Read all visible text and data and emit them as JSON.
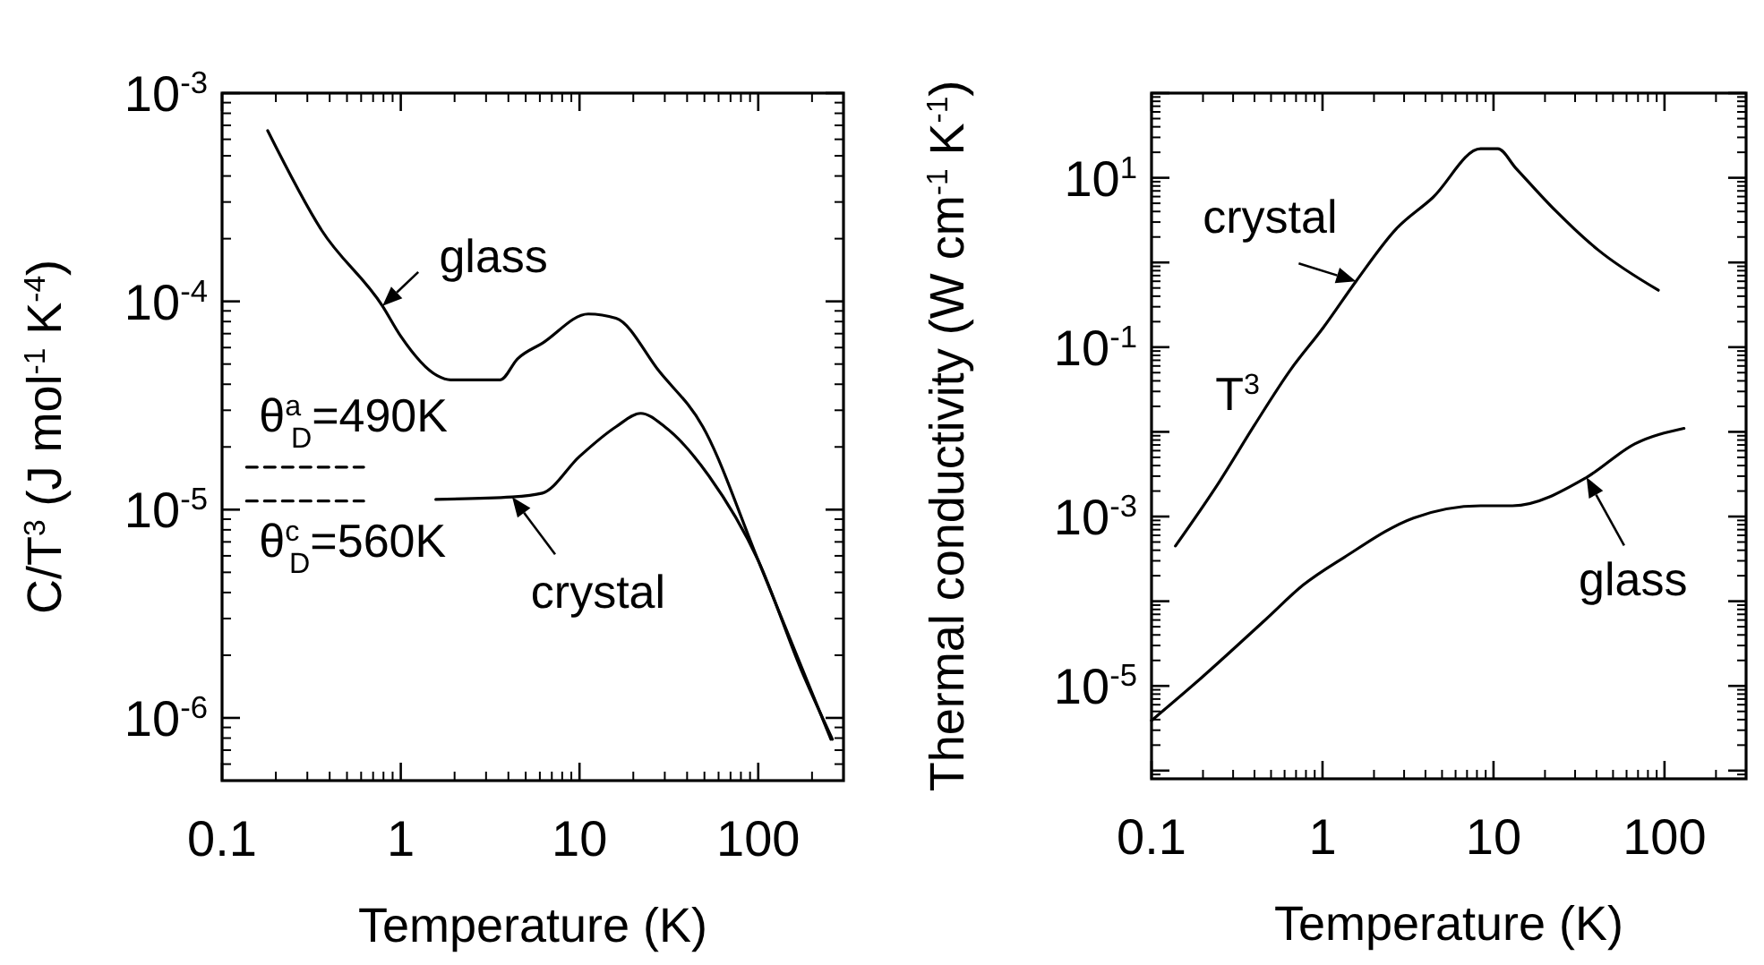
{
  "chart_data": [
    {
      "type": "line",
      "log": "xy",
      "xlabel": "Temperature (K)",
      "ylabel": "C/T$^{3}$ (J mol$^{-1}$ K$^{-4}$)",
      "xlim": [
        0.1,
        300
      ],
      "ylim": [
        5e-07,
        0.001
      ],
      "xticks": [
        0.1,
        1,
        10,
        100
      ],
      "yticks": [
        {
          "value": 0.001,
          "label": "10$^{-3}$"
        },
        {
          "value": 0.0001,
          "label": "10$^{-4}$"
        },
        {
          "value": 1e-05,
          "label": "10$^{-5}$"
        },
        {
          "value": 1e-06,
          "label": "10$^{-6}$"
        }
      ],
      "annotations": [
        {
          "text": "θ$^{a}$$_{D}$=490K",
          "x": 0.137,
          "y": 1.6e-05
        },
        {
          "text": "θ$^{c}$$_{D}$=560K",
          "x": 0.137,
          "y": 1.1e-05
        }
      ],
      "series": [
        {
          "name": "glass",
          "color": "#000000",
          "x": [
            0.18,
            0.36,
            0.79,
            1.0,
            1.6,
            1.9,
            3.6,
            4.5,
            6.2,
            11.2,
            16,
            28,
            49,
            100,
            255
          ],
          "values": [
            0.00066,
            0.00022,
            9.5e-05,
            6.8e-05,
            4.4e-05,
            4.2e-05,
            4.2e-05,
            5.3e-05,
            6.3e-05,
            8.7e-05,
            8.3e-05,
            4.6e-05,
            2.5e-05,
            5.7e-06,
            7.9e-07
          ]
        },
        {
          "name": "crystal",
          "color": "#000000",
          "x": [
            1.57,
            4.2,
            6.2,
            10,
            16,
            22,
            30,
            53,
            100,
            174,
            260
          ],
          "values": [
            1.12e-05,
            1.15e-05,
            1.2e-05,
            1.8e-05,
            2.5e-05,
            2.9e-05,
            2.5e-05,
            1.45e-05,
            5.7e-06,
            1.7e-06,
            7.9e-07
          ]
        },
        {
          "color": "#000000",
          "line_style": "dashed",
          "x": [
            0.137,
            0.62
          ],
          "values": [
            1.6e-05,
            1.6e-05
          ]
        },
        {
          "color": "#000000",
          "line_style": "dashed",
          "x": [
            0.137,
            0.62
          ],
          "values": [
            1.1e-05,
            1.1e-05
          ]
        }
      ]
    },
    {
      "type": "line",
      "log": "xy",
      "xlabel": "Temperature (K)",
      "ylabel": "Thermal conductivity (W cm$^{-1}$ K$^{-1}$)",
      "xlim": [
        0.1,
        300
      ],
      "ylim": [
        8e-07,
        100
      ],
      "xticks": [
        0.1,
        1,
        10,
        100
      ],
      "yticks": [
        {
          "value": 100,
          "label": null
        },
        {
          "value": 10,
          "label": "10$^{1}$"
        },
        {
          "value": 1,
          "label": null
        },
        {
          "value": 0.1,
          "label": "10$^{-1}$"
        },
        {
          "value": 0.01,
          "label": null
        },
        {
          "value": 0.001,
          "label": "10$^{-3}$"
        },
        {
          "value": 0.0001,
          "label": null
        },
        {
          "value": 1e-05,
          "label": "10$^{-5}$"
        },
        {
          "value": 1e-06,
          "label": null
        }
      ],
      "annotations": [
        "T$^{3}$"
      ],
      "series": [
        {
          "name": "crystal",
          "color": "#000000",
          "x": [
            0.138,
            0.25,
            0.4,
            0.65,
            1.01,
            1.57,
            2.7,
            4.4,
            8.4,
            10.6,
            13.5,
            23,
            41,
            92
          ],
          "values": [
            0.00045,
            0.0026,
            0.012,
            0.054,
            0.17,
            0.6,
            2.5,
            5.8,
            22,
            22,
            13,
            4.1,
            1.4,
            0.47
          ]
        },
        {
          "name": "glass",
          "color": "#000000",
          "x": [
            0.1,
            0.197,
            0.47,
            0.77,
            1.34,
            3.4,
            8.4,
            12.9,
            35,
            67,
            130
          ],
          "values": [
            3.9e-06,
            1.26e-05,
            6.2e-05,
            0.000155,
            0.00033,
            0.00096,
            0.00134,
            0.00134,
            0.0029,
            0.0072,
            0.011
          ]
        }
      ]
    }
  ]
}
